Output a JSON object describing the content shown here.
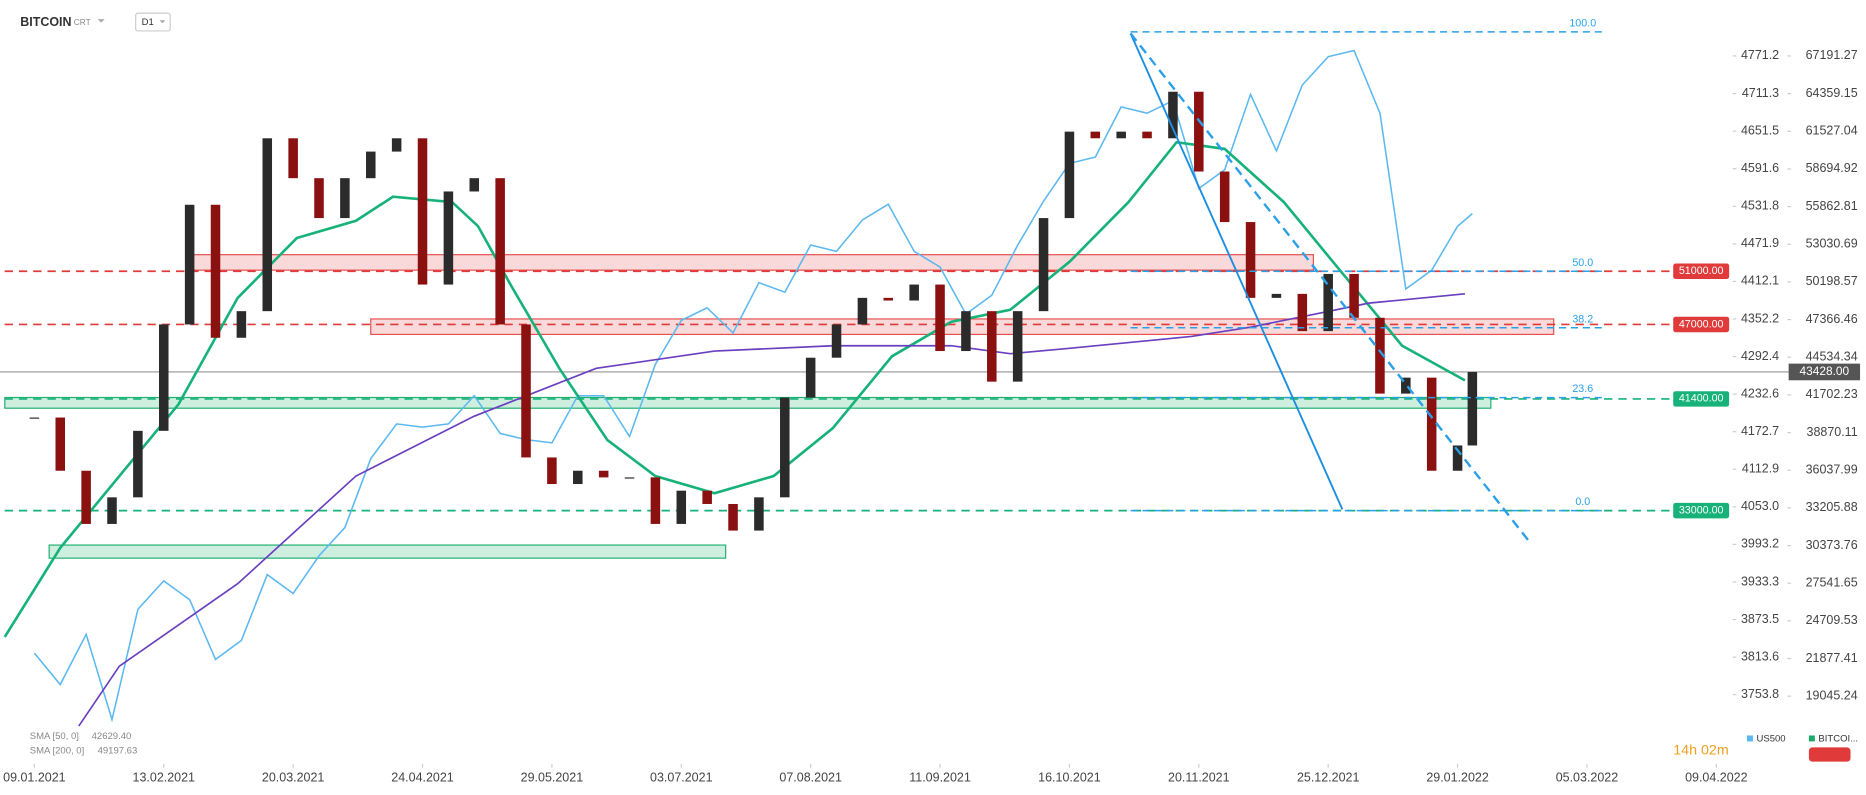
{
  "chart_data": {
    "type": "candlestick",
    "title": "BITCOIN",
    "source_label": "CRT",
    "timeframe": "D1",
    "timer": "14h 02m",
    "xlim": [
      -9.3,
      457.5
    ],
    "xticks": [
      {
        "value": 0,
        "label": "09.01.2021"
      },
      {
        "value": 35,
        "label": "13.02.2021"
      },
      {
        "value": 70,
        "label": "20.03.2021"
      },
      {
        "value": 105,
        "label": "24.04.2021"
      },
      {
        "value": 140,
        "label": "29.05.2021"
      },
      {
        "value": 175,
        "label": "03.07.2021"
      },
      {
        "value": 210,
        "label": "07.08.2021"
      },
      {
        "value": 245,
        "label": "11.09.2021"
      },
      {
        "value": 280,
        "label": "16.10.2021"
      },
      {
        "value": 315,
        "label": "20.11.2021"
      },
      {
        "value": 350,
        "label": "25.12.2021"
      },
      {
        "value": 385,
        "label": "29.01.2022"
      },
      {
        "value": 420,
        "label": "05.03.2022"
      },
      {
        "value": 455,
        "label": "09.04.2022"
      }
    ],
    "ylim": [
      3647.1,
      4860.3
    ],
    "yticks": [
      4771.2,
      4711.3,
      4651.5,
      4591.6,
      4531.8,
      4471.9,
      4412.1,
      4352.2,
      4292.4,
      4232.6,
      4172.7,
      4112.9,
      {
        "value": 4053,
        "label": "4053.0"
      },
      3993.2,
      3933.3,
      3873.5,
      3813.6,
      3753.8
    ],
    "y2lim": [
      14123.2,
      71397.3
    ],
    "y2ticks": [
      67191.27,
      64359.15,
      61527.04,
      58694.92,
      55862.81,
      53030.69,
      50198.57,
      47366.46,
      44534.34,
      41702.23,
      38870.11,
      36037.99,
      33205.88,
      30373.76,
      27541.65,
      24709.53,
      21877.41,
      19045.24
    ],
    "x": [
      0,
      7,
      14,
      21,
      28,
      35,
      42,
      49,
      56,
      63,
      70,
      77,
      84,
      91,
      98,
      105,
      112,
      119,
      126,
      133,
      140,
      147,
      154,
      161,
      168,
      175,
      182,
      189,
      196,
      203,
      210,
      217,
      224,
      231,
      238,
      245,
      252,
      259,
      266,
      273,
      280,
      287,
      294,
      301,
      308,
      315,
      322,
      329,
      336,
      343,
      350,
      357,
      364,
      371,
      378,
      385,
      389
    ],
    "series": [
      {
        "name": "BITCOI...",
        "axis": "y2",
        "color": "#1aa86b",
        "up_color": "#2b2b2b",
        "down_color": "#8b1010",
        "values": [
          40000,
          36000,
          32000,
          34000,
          39000,
          47000,
          56000,
          46000,
          48000,
          61000,
          58000,
          55000,
          58000,
          60000,
          61000,
          50000,
          57000,
          58000,
          47000,
          37000,
          35000,
          36000,
          35500,
          35500,
          32000,
          34500,
          33500,
          31500,
          34000,
          41500,
          44500,
          47000,
          49000,
          48800,
          50000,
          45000,
          48000,
          42700,
          48000,
          55000,
          61500,
          61000,
          61500,
          61000,
          64500,
          58500,
          54700,
          49000,
          49300,
          46500,
          50800,
          47500,
          41800,
          43000,
          36000,
          37900,
          43428
        ]
      },
      {
        "name": "US500",
        "axis": "y",
        "color": "#5bb8f0",
        "values": [
          3820,
          3770,
          3850,
          3714,
          3890,
          3935,
          3905,
          3810,
          3840,
          3945,
          3915,
          3975,
          4020,
          4130,
          4185,
          4180,
          4185,
          4230,
          4170,
          4160,
          4155,
          4230,
          4230,
          4165,
          4280,
          4350,
          4370,
          4330,
          4410,
          4395,
          4470,
          4460,
          4510,
          4535,
          4460,
          4435,
          4360,
          4390,
          4470,
          4540,
          4600,
          4610,
          4690,
          4680,
          4700,
          4560,
          4590,
          4710,
          4620,
          4725,
          4770,
          4780,
          4680,
          4400,
          4430,
          4500,
          4520
        ]
      }
    ],
    "indicators": [
      {
        "name": "SMA [50, 0]",
        "color": "#16b27a",
        "legend_value": {
          "value": 42629.4,
          "label": "42629.40"
        },
        "x": [
          -8,
          7,
          23,
          39,
          55,
          71,
          87,
          97,
          113,
          120,
          129,
          142,
          155,
          168,
          184,
          200,
          216,
          232,
          248,
          264,
          280,
          296,
          309,
          322,
          338,
          354,
          370,
          387
        ],
        "values": [
          23500,
          30200,
          35600,
          41000,
          49000,
          53500,
          54800,
          56600,
          56200,
          54400,
          49900,
          43700,
          38300,
          35600,
          34300,
          35600,
          39200,
          44600,
          47200,
          48100,
          51700,
          56200,
          60700,
          60200,
          56200,
          50800,
          45400,
          42800
        ]
      },
      {
        "name": "SMA [200, 0]",
        "color": "#6a3fc0",
        "legend_value": {
          "value": 49197.63,
          "label": "49197.63"
        },
        "x": [
          12,
          23,
          55,
          87,
          119,
          152,
          184,
          216,
          248,
          264,
          280,
          313,
          329,
          345,
          361,
          387
        ],
        "values": [
          16800,
          21300,
          27500,
          35600,
          40100,
          43700,
          45000,
          45400,
          45400,
          44800,
          45200,
          46100,
          46800,
          47700,
          48600,
          49300
        ]
      }
    ],
    "zones": [
      {
        "x": [
          42,
          346
        ],
        "y": [
          52247,
          51084
        ],
        "color": "#e55050"
      },
      {
        "x": [
          91,
          411
        ],
        "y": [
          47414,
          46251
        ],
        "color": "#e55050"
      },
      {
        "x": [
          -8,
          394
        ],
        "y": [
          41508,
          40703
        ],
        "color": "#20b070"
      },
      {
        "x": [
          4,
          187
        ],
        "y": [
          30411,
          29427
        ],
        "color": "#20b070"
      }
    ],
    "levels": [
      {
        "value": 51000,
        "label": "51000.00",
        "color": "#e03a3a"
      },
      {
        "value": 47000,
        "label": "47000.00",
        "color": "#e03a3a"
      },
      {
        "value": 41400,
        "label": "41400.00",
        "color": "#16b27a"
      },
      {
        "value": 33000,
        "label": "33000.00",
        "color": "#16b27a"
      }
    ],
    "fibonacci": [
      {
        "label": "100.0",
        "value": 69000
      },
      {
        "label": "50.0",
        "value": 51000
      },
      {
        "label": "38.2",
        "value": 46750
      },
      {
        "label": "23.6",
        "value": 41500
      },
      {
        "label": "0.0",
        "value": 33000
      }
    ],
    "current_price": {
      "value": 43428,
      "label": "43428.00"
    }
  }
}
